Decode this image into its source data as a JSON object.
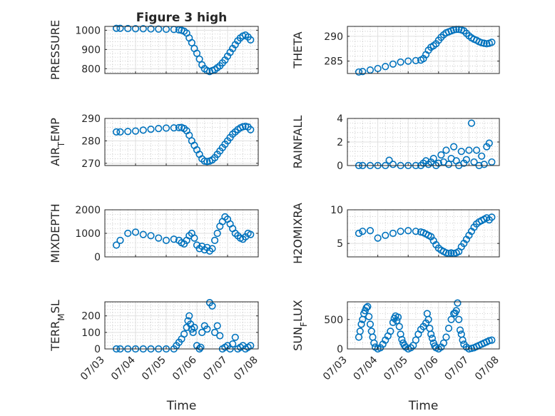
{
  "figure": {
    "title": "Figure 3 high",
    "background": "#ffffff",
    "marker_color": "#0072BD",
    "xlabel": "Time"
  },
  "chart_data": [
    {
      "type": "scatter",
      "title": "Figure 3 high",
      "ylabel": "PRESSURE",
      "ylim": [
        775,
        1020
      ],
      "yticks": [
        "800",
        "900",
        "1000"
      ],
      "ytick_values": [
        800,
        900,
        1000
      ],
      "xlim": [
        "07/03 00:00",
        "07/08 00:00"
      ],
      "xticks": [],
      "grid": true,
      "series": [
        {
          "x": [
            "07/03 09:00",
            "07/03 12:00",
            "07/03 18:00",
            "07/04 00:00",
            "07/04 06:00",
            "07/04 12:00",
            "07/04 18:00",
            "07/05 00:00",
            "07/05 06:00",
            "07/05 10:00",
            "07/05 12:00",
            "07/05 14:00",
            "07/05 16:00",
            "07/05 18:00",
            "07/05 20:00",
            "07/05 22:00",
            "07/06 00:00",
            "07/06 02:00",
            "07/06 04:00",
            "07/06 06:00",
            "07/06 08:00",
            "07/06 10:00",
            "07/06 12:00",
            "07/06 14:00",
            "07/06 16:00",
            "07/06 18:00",
            "07/06 20:00",
            "07/06 22:00",
            "07/07 00:00",
            "07/07 02:00",
            "07/07 04:00",
            "07/07 06:00",
            "07/07 08:00",
            "07/07 10:00",
            "07/07 12:00",
            "07/07 14:00",
            "07/07 16:00",
            "07/07 18:00"
          ],
          "y": [
            1010,
            1010,
            1009,
            1008,
            1008,
            1007,
            1006,
            1005,
            1004,
            1002,
            1000,
            995,
            985,
            960,
            935,
            905,
            880,
            850,
            820,
            800,
            790,
            785,
            790,
            795,
            805,
            815,
            830,
            845,
            865,
            885,
            905,
            925,
            945,
            960,
            970,
            975,
            965,
            950
          ]
        }
      ]
    },
    {
      "type": "scatter",
      "ylabel": "THETA",
      "ylim": [
        282.5,
        292
      ],
      "yticks": [
        "285",
        "290"
      ],
      "ytick_values": [
        285,
        290
      ],
      "xlim": [
        "07/03 00:00",
        "07/08 00:00"
      ],
      "xticks": [],
      "grid": true,
      "series": [
        {
          "x": [
            "07/03 09:00",
            "07/03 12:00",
            "07/03 18:00",
            "07/04 00:00",
            "07/04 06:00",
            "07/04 12:00",
            "07/04 18:00",
            "07/05 00:00",
            "07/05 06:00",
            "07/05 10:00",
            "07/05 12:00",
            "07/05 14:00",
            "07/05 16:00",
            "07/05 18:00",
            "07/05 20:00",
            "07/05 22:00",
            "07/06 00:00",
            "07/06 02:00",
            "07/06 04:00",
            "07/06 06:00",
            "07/06 08:00",
            "07/06 10:00",
            "07/06 12:00",
            "07/06 14:00",
            "07/06 16:00",
            "07/06 18:00",
            "07/06 20:00",
            "07/06 22:00",
            "07/07 00:00",
            "07/07 02:00",
            "07/07 04:00",
            "07/07 06:00",
            "07/07 08:00",
            "07/07 10:00",
            "07/07 12:00",
            "07/07 14:00",
            "07/07 16:00",
            "07/07 18:00"
          ],
          "y": [
            282.8,
            282.9,
            283.2,
            283.5,
            283.9,
            284.4,
            284.8,
            285.0,
            285.1,
            285.2,
            285.5,
            286.3,
            287.2,
            287.8,
            288.1,
            288.5,
            289.2,
            289.8,
            290.3,
            290.7,
            290.9,
            291.1,
            291.3,
            291.4,
            291.4,
            291.3,
            291.1,
            290.6,
            290.1,
            289.7,
            289.4,
            289.2,
            288.9,
            288.7,
            288.6,
            288.5,
            288.6,
            288.8
          ]
        }
      ]
    },
    {
      "type": "scatter",
      "ylabel": "AIR",
      "ylabel_sub": "T",
      "ylabel_tail": "EMP",
      "ylim": [
        269,
        290
      ],
      "yticks": [
        "270",
        "280",
        "290"
      ],
      "ytick_values": [
        270,
        280,
        290
      ],
      "xlim": [
        "07/03 00:00",
        "07/08 00:00"
      ],
      "xticks": [],
      "grid": true,
      "series": [
        {
          "x": [
            "07/03 09:00",
            "07/03 12:00",
            "07/03 18:00",
            "07/04 00:00",
            "07/04 06:00",
            "07/04 12:00",
            "07/04 18:00",
            "07/05 00:00",
            "07/05 06:00",
            "07/05 10:00",
            "07/05 12:00",
            "07/05 14:00",
            "07/05 16:00",
            "07/05 18:00",
            "07/05 20:00",
            "07/05 22:00",
            "07/06 00:00",
            "07/06 02:00",
            "07/06 04:00",
            "07/06 06:00",
            "07/06 08:00",
            "07/06 10:00",
            "07/06 12:00",
            "07/06 14:00",
            "07/06 16:00",
            "07/06 18:00",
            "07/06 20:00",
            "07/06 22:00",
            "07/07 00:00",
            "07/07 02:00",
            "07/07 04:00",
            "07/07 06:00",
            "07/07 08:00",
            "07/07 10:00",
            "07/07 12:00",
            "07/07 14:00",
            "07/07 16:00",
            "07/07 18:00"
          ],
          "y": [
            284.0,
            284.0,
            284.2,
            284.4,
            284.8,
            285.2,
            285.5,
            285.7,
            285.8,
            285.9,
            286.0,
            285.5,
            284.5,
            282.5,
            280.0,
            278.0,
            276.0,
            274.0,
            272.0,
            271.0,
            270.8,
            271.0,
            271.5,
            272.5,
            274.0,
            275.5,
            277.0,
            278.5,
            280.0,
            281.5,
            283.0,
            284.0,
            285.0,
            285.8,
            286.3,
            286.5,
            286.2,
            285.0
          ]
        }
      ]
    },
    {
      "type": "scatter",
      "ylabel": "RAINFALL",
      "ylim": [
        0,
        4
      ],
      "yticks": [
        "0",
        "2",
        "4"
      ],
      "ytick_values": [
        0,
        2,
        4
      ],
      "xlim": [
        "07/03 00:00",
        "07/08 00:00"
      ],
      "xticks": [],
      "grid": true,
      "series": [
        {
          "x": [
            "07/03 09:00",
            "07/03 12:00",
            "07/03 18:00",
            "07/04 00:00",
            "07/04 06:00",
            "07/04 09:00",
            "07/04 12:00",
            "07/04 18:00",
            "07/05 00:00",
            "07/05 06:00",
            "07/05 10:00",
            "07/05 12:00",
            "07/05 14:00",
            "07/05 16:00",
            "07/05 18:00",
            "07/05 20:00",
            "07/05 22:00",
            "07/06 00:00",
            "07/06 02:00",
            "07/06 04:00",
            "07/06 06:00",
            "07/06 08:00",
            "07/06 10:00",
            "07/06 12:00",
            "07/06 14:00",
            "07/06 16:00",
            "07/06 18:00",
            "07/06 20:00",
            "07/06 22:00",
            "07/07 00:00",
            "07/07 02:00",
            "07/07 04:00",
            "07/07 06:00",
            "07/07 08:00",
            "07/07 10:00",
            "07/07 12:00",
            "07/07 14:00",
            "07/07 16:00",
            "07/07 18:00"
          ],
          "y": [
            0,
            0,
            0,
            0,
            0,
            0.45,
            0.1,
            0,
            0,
            0,
            0,
            0.2,
            0.4,
            0.1,
            0.3,
            0.6,
            0,
            0.2,
            0.9,
            0.3,
            1.3,
            0.1,
            0.6,
            1.6,
            0.4,
            0,
            1.2,
            0.2,
            0.5,
            1.3,
            3.6,
            0.3,
            1.3,
            0,
            0.8,
            0.1,
            1.6,
            1.9,
            0.3
          ]
        }
      ]
    },
    {
      "type": "scatter",
      "ylabel": "MIXDEPTH",
      "ylim": [
        0,
        2000
      ],
      "yticks": [
        "0",
        "1000",
        "2000"
      ],
      "ytick_values": [
        0,
        1000,
        2000
      ],
      "xlim": [
        "07/03 00:00",
        "07/08 00:00"
      ],
      "xticks": [],
      "grid": true,
      "series": [
        {
          "x": [
            "07/03 09:00",
            "07/03 12:00",
            "07/03 18:00",
            "07/04 00:00",
            "07/04 06:00",
            "07/04 12:00",
            "07/04 18:00",
            "07/05 00:00",
            "07/05 06:00",
            "07/05 10:00",
            "07/05 12:00",
            "07/05 14:00",
            "07/05 16:00",
            "07/05 18:00",
            "07/05 20:00",
            "07/05 22:00",
            "07/06 00:00",
            "07/06 02:00",
            "07/06 04:00",
            "07/06 06:00",
            "07/06 08:00",
            "07/06 10:00",
            "07/06 12:00",
            "07/06 14:00",
            "07/06 16:00",
            "07/06 18:00",
            "07/06 20:00",
            "07/06 22:00",
            "07/07 00:00",
            "07/07 02:00",
            "07/07 04:00",
            "07/07 06:00",
            "07/07 08:00",
            "07/07 10:00",
            "07/07 12:00",
            "07/07 14:00",
            "07/07 16:00",
            "07/07 18:00"
          ],
          "y": [
            500,
            700,
            1000,
            1050,
            950,
            900,
            800,
            700,
            750,
            700,
            600,
            550,
            700,
            900,
            1000,
            800,
            500,
            350,
            450,
            300,
            400,
            250,
            350,
            700,
            1000,
            1300,
            1500,
            1700,
            1600,
            1400,
            1200,
            1000,
            900,
            800,
            750,
            850,
            1000,
            950
          ]
        }
      ]
    },
    {
      "type": "scatter",
      "ylabel": "H2OMIXRA",
      "ylim": [
        3,
        10
      ],
      "yticks": [
        "5",
        "10"
      ],
      "ytick_values": [
        5,
        10
      ],
      "xlim": [
        "07/03 00:00",
        "07/08 00:00"
      ],
      "xticks": [],
      "grid": true,
      "series": [
        {
          "x": [
            "07/03 09:00",
            "07/03 12:00",
            "07/03 18:00",
            "07/04 00:00",
            "07/04 06:00",
            "07/04 12:00",
            "07/04 18:00",
            "07/05 00:00",
            "07/05 06:00",
            "07/05 10:00",
            "07/05 12:00",
            "07/05 14:00",
            "07/05 16:00",
            "07/05 18:00",
            "07/05 20:00",
            "07/05 22:00",
            "07/06 00:00",
            "07/06 02:00",
            "07/06 04:00",
            "07/06 06:00",
            "07/06 08:00",
            "07/06 10:00",
            "07/06 12:00",
            "07/06 14:00",
            "07/06 16:00",
            "07/06 18:00",
            "07/06 20:00",
            "07/06 22:00",
            "07/07 00:00",
            "07/07 02:00",
            "07/07 04:00",
            "07/07 06:00",
            "07/07 08:00",
            "07/07 10:00",
            "07/07 12:00",
            "07/07 14:00",
            "07/07 16:00",
            "07/07 18:00"
          ],
          "y": [
            6.5,
            6.8,
            6.9,
            5.8,
            6.2,
            6.5,
            6.8,
            6.9,
            6.8,
            6.7,
            6.6,
            6.4,
            6.2,
            6.0,
            5.4,
            4.8,
            4.3,
            4.0,
            3.8,
            3.6,
            3.5,
            3.6,
            3.5,
            3.6,
            3.8,
            4.5,
            5.0,
            5.6,
            6.2,
            6.8,
            7.4,
            7.9,
            8.2,
            8.4,
            8.6,
            8.8,
            8.5,
            8.9
          ]
        }
      ]
    },
    {
      "type": "scatter",
      "ylabel": "TERR",
      "ylabel_sub": "M",
      "ylabel_tail": "SL",
      "ylim": [
        0,
        285
      ],
      "yticks": [
        "0",
        "100",
        "200"
      ],
      "ytick_values": [
        0,
        100,
        200
      ],
      "xlim": [
        "07/03 00:00",
        "07/08 00:00"
      ],
      "xticks": [
        "07/03",
        "07/04",
        "07/05",
        "07/06",
        "07/07",
        "07/08"
      ],
      "xlabel": "Time",
      "grid": true,
      "series": [
        {
          "x": [
            "07/03 09:00",
            "07/03 12:00",
            "07/03 18:00",
            "07/04 00:00",
            "07/04 06:00",
            "07/04 12:00",
            "07/04 18:00",
            "07/05 00:00",
            "07/05 06:00",
            "07/05 08:00",
            "07/05 10:00",
            "07/05 12:00",
            "07/05 14:00",
            "07/05 16:00",
            "07/05 17:00",
            "07/05 18:00",
            "07/05 19:00",
            "07/05 20:00",
            "07/05 21:00",
            "07/05 22:00",
            "07/06 00:00",
            "07/06 02:00",
            "07/06 03:00",
            "07/06 04:00",
            "07/06 06:00",
            "07/06 08:00",
            "07/06 10:00",
            "07/06 12:00",
            "07/06 14:00",
            "07/06 16:00",
            "07/06 18:00",
            "07/06 20:00",
            "07/06 22:00",
            "07/07 00:00",
            "07/07 02:00",
            "07/07 04:00",
            "07/07 06:00",
            "07/07 08:00",
            "07/07 10:00",
            "07/07 12:00",
            "07/07 14:00",
            "07/07 16:00",
            "07/07 18:00"
          ],
          "y": [
            0,
            0,
            0,
            0,
            0,
            0,
            0,
            0,
            0,
            20,
            40,
            60,
            90,
            130,
            170,
            200,
            150,
            120,
            100,
            130,
            20,
            0,
            10,
            100,
            140,
            120,
            280,
            260,
            100,
            140,
            80,
            0,
            10,
            20,
            0,
            30,
            70,
            0,
            10,
            20,
            0,
            10,
            20
          ]
        }
      ]
    },
    {
      "type": "scatter",
      "ylabel": "SUN",
      "ylabel_sub": "F",
      "ylabel_tail": "LUX",
      "ylim": [
        0,
        800
      ],
      "yticks": [
        "0",
        "500"
      ],
      "ytick_values": [
        0,
        500
      ],
      "xlim": [
        "07/03 00:00",
        "07/08 00:00"
      ],
      "xticks": [
        "07/03",
        "07/04",
        "07/05",
        "07/06",
        "07/07",
        "07/08"
      ],
      "xlabel": "Time",
      "grid": true,
      "series": [
        {
          "x": [
            "07/03 09:00",
            "07/03 10:00",
            "07/03 11:00",
            "07/03 12:00",
            "07/03 13:00",
            "07/03 14:00",
            "07/03 15:00",
            "07/03 16:00",
            "07/03 17:00",
            "07/03 18:00",
            "07/03 19:00",
            "07/03 20:00",
            "07/03 21:00",
            "07/03 22:00",
            "07/04 00:00",
            "07/04 02:00",
            "07/04 04:00",
            "07/04 06:00",
            "07/04 08:00",
            "07/04 10:00",
            "07/04 12:00",
            "07/04 13:00",
            "07/04 14:00",
            "07/04 15:00",
            "07/04 16:00",
            "07/04 17:00",
            "07/04 18:00",
            "07/04 19:00",
            "07/04 20:00",
            "07/04 21:00",
            "07/04 22:00",
            "07/05 00:00",
            "07/05 02:00",
            "07/05 04:00",
            "07/05 06:00",
            "07/05 08:00",
            "07/05 10:00",
            "07/05 12:00",
            "07/05 14:00",
            "07/05 15:00",
            "07/05 16:00",
            "07/05 17:00",
            "07/05 18:00",
            "07/05 19:00",
            "07/05 20:00",
            "07/05 21:00",
            "07/05 22:00",
            "07/06 00:00",
            "07/06 02:00",
            "07/06 04:00",
            "07/06 06:00",
            "07/06 08:00",
            "07/06 10:00",
            "07/06 12:00",
            "07/06 13:00",
            "07/06 14:00",
            "07/06 15:00",
            "07/06 16:00",
            "07/06 17:00",
            "07/06 18:00",
            "07/06 19:00",
            "07/06 20:00",
            "07/06 22:00",
            "07/07 00:00",
            "07/07 02:00",
            "07/07 04:00",
            "07/07 06:00",
            "07/07 08:00",
            "07/07 10:00",
            "07/07 12:00",
            "07/07 14:00",
            "07/07 16:00",
            "07/07 18:00"
          ],
          "y": [
            200,
            300,
            420,
            500,
            600,
            650,
            700,
            720,
            550,
            420,
            300,
            200,
            100,
            30,
            0,
            20,
            80,
            150,
            220,
            300,
            450,
            520,
            560,
            480,
            540,
            380,
            250,
            160,
            100,
            60,
            30,
            0,
            20,
            60,
            150,
            250,
            330,
            380,
            440,
            600,
            500,
            350,
            250,
            180,
            100,
            50,
            20,
            0,
            30,
            100,
            200,
            350,
            500,
            600,
            610,
            650,
            780,
            500,
            320,
            250,
            150,
            80,
            30,
            0,
            10,
            20,
            40,
            60,
            80,
            100,
            120,
            140,
            150
          ]
        }
      ]
    }
  ]
}
